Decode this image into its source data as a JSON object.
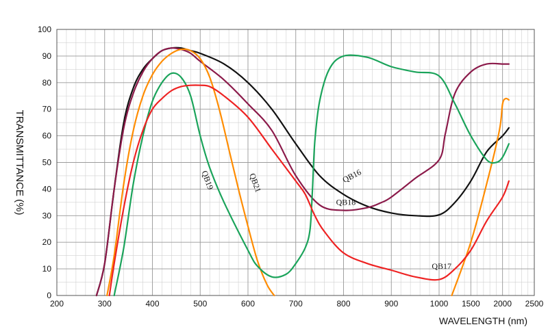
{
  "chart_data": {
    "type": "line",
    "xlabel": "WAVELENGTH (nm)",
    "ylabel": "TRANSMITTANCE  (%)",
    "ylim": [
      0,
      100
    ],
    "yticks": [
      0,
      10,
      20,
      30,
      40,
      50,
      60,
      70,
      80,
      90,
      100
    ],
    "xticks": [
      200,
      300,
      400,
      500,
      600,
      700,
      800,
      900,
      1000,
      1500,
      2000,
      2500
    ],
    "x_scale": "piecewise: linear 200-1000 nm, compressed 1000-2500 nm",
    "grid": true,
    "series": [
      {
        "name": "QB16",
        "color": "#111111",
        "points": [
          [
            283,
            0
          ],
          [
            300,
            12
          ],
          [
            320,
            40
          ],
          [
            340,
            65
          ],
          [
            360,
            78
          ],
          [
            380,
            85
          ],
          [
            400,
            89
          ],
          [
            420,
            92
          ],
          [
            440,
            93
          ],
          [
            460,
            93
          ],
          [
            480,
            92
          ],
          [
            500,
            91
          ],
          [
            550,
            87
          ],
          [
            600,
            80
          ],
          [
            650,
            70
          ],
          [
            700,
            57
          ],
          [
            750,
            45
          ],
          [
            800,
            38
          ],
          [
            850,
            33.5
          ],
          [
            900,
            31
          ],
          [
            950,
            30
          ],
          [
            1000,
            30.3
          ],
          [
            1250,
            35
          ],
          [
            1500,
            43
          ],
          [
            1750,
            54
          ],
          [
            2000,
            60
          ],
          [
            2100,
            63
          ]
        ]
      },
      {
        "name": "QB18",
        "color": "#8b1a4a",
        "points": [
          [
            283,
            0
          ],
          [
            300,
            12
          ],
          [
            320,
            40
          ],
          [
            340,
            63
          ],
          [
            360,
            76
          ],
          [
            380,
            84
          ],
          [
            400,
            89
          ],
          [
            420,
            92
          ],
          [
            440,
            93
          ],
          [
            460,
            92.5
          ],
          [
            480,
            91
          ],
          [
            500,
            88
          ],
          [
            550,
            81
          ],
          [
            600,
            72
          ],
          [
            650,
            62
          ],
          [
            700,
            45
          ],
          [
            750,
            34
          ],
          [
            800,
            32
          ],
          [
            850,
            33
          ],
          [
            880,
            35
          ],
          [
            900,
            37
          ],
          [
            950,
            44
          ],
          [
            1000,
            51
          ],
          [
            1100,
            61
          ],
          [
            1250,
            76
          ],
          [
            1500,
            84
          ],
          [
            1750,
            87
          ],
          [
            2000,
            87
          ],
          [
            2100,
            87
          ]
        ]
      },
      {
        "name": "QB21",
        "color": "#ff8c00",
        "points": [
          [
            305,
            0
          ],
          [
            320,
            15
          ],
          [
            340,
            42
          ],
          [
            360,
            62
          ],
          [
            380,
            75
          ],
          [
            400,
            83
          ],
          [
            420,
            88
          ],
          [
            440,
            91
          ],
          [
            460,
            92.5
          ],
          [
            480,
            92
          ],
          [
            500,
            89
          ],
          [
            520,
            82
          ],
          [
            540,
            70
          ],
          [
            560,
            55
          ],
          [
            580,
            40
          ],
          [
            600,
            26
          ],
          [
            620,
            13
          ],
          [
            640,
            4
          ],
          [
            655,
            0
          ]
        ]
      },
      {
        "name": "QB21",
        "color": "#ff8c00",
        "points": [
          [
            1200,
            0
          ],
          [
            1500,
            20
          ],
          [
            1750,
            42
          ],
          [
            1950,
            62
          ],
          [
            2000,
            72
          ],
          [
            2050,
            74
          ],
          [
            2100,
            73.5
          ]
        ]
      },
      {
        "name": "QB19",
        "color": "#1aa35a",
        "points": [
          [
            320,
            0
          ],
          [
            340,
            18
          ],
          [
            360,
            42
          ],
          [
            380,
            60
          ],
          [
            400,
            73
          ],
          [
            420,
            80
          ],
          [
            440,
            83.5
          ],
          [
            460,
            82
          ],
          [
            480,
            75
          ],
          [
            500,
            60
          ],
          [
            520,
            48
          ],
          [
            550,
            35
          ],
          [
            600,
            17
          ],
          [
            620,
            11
          ],
          [
            650,
            7
          ],
          [
            680,
            8
          ],
          [
            700,
            12
          ],
          [
            720,
            18
          ],
          [
            730,
            25
          ],
          [
            735,
            40
          ],
          [
            740,
            58
          ],
          [
            750,
            73
          ],
          [
            770,
            85
          ],
          [
            800,
            90
          ],
          [
            850,
            89.5
          ],
          [
            900,
            86
          ],
          [
            950,
            84
          ],
          [
            1000,
            82.5
          ],
          [
            1250,
            72
          ],
          [
            1500,
            60
          ],
          [
            1750,
            51
          ],
          [
            1900,
            50
          ],
          [
            2000,
            52
          ],
          [
            2100,
            57
          ]
        ]
      },
      {
        "name": "QB17",
        "color": "#ee2222",
        "points": [
          [
            310,
            0
          ],
          [
            320,
            12
          ],
          [
            340,
            33
          ],
          [
            360,
            50
          ],
          [
            380,
            62
          ],
          [
            400,
            70
          ],
          [
            420,
            74
          ],
          [
            440,
            77
          ],
          [
            460,
            78.5
          ],
          [
            480,
            79
          ],
          [
            500,
            79
          ],
          [
            520,
            78.5
          ],
          [
            550,
            75
          ],
          [
            600,
            67
          ],
          [
            650,
            55
          ],
          [
            700,
            43
          ],
          [
            720,
            38
          ],
          [
            740,
            30
          ],
          [
            760,
            24
          ],
          [
            800,
            16
          ],
          [
            850,
            12
          ],
          [
            900,
            9.5
          ],
          [
            950,
            7
          ],
          [
            1000,
            6
          ],
          [
            1250,
            10
          ],
          [
            1500,
            17
          ],
          [
            1750,
            28
          ],
          [
            2000,
            37
          ],
          [
            2100,
            43
          ]
        ]
      }
    ],
    "series_labels": [
      {
        "text": "QB16",
        "x": 820,
        "y": 44,
        "rotate": -27
      },
      {
        "text": "QB18",
        "x": 805,
        "y": 34,
        "rotate": 0
      },
      {
        "text": "QB17",
        "x": 1040,
        "y": 10,
        "rotate": 0
      },
      {
        "text": "QB19",
        "x": 510,
        "y": 43,
        "rotate": 70
      },
      {
        "text": "QB21",
        "x": 610,
        "y": 42,
        "rotate": 70
      }
    ]
  }
}
